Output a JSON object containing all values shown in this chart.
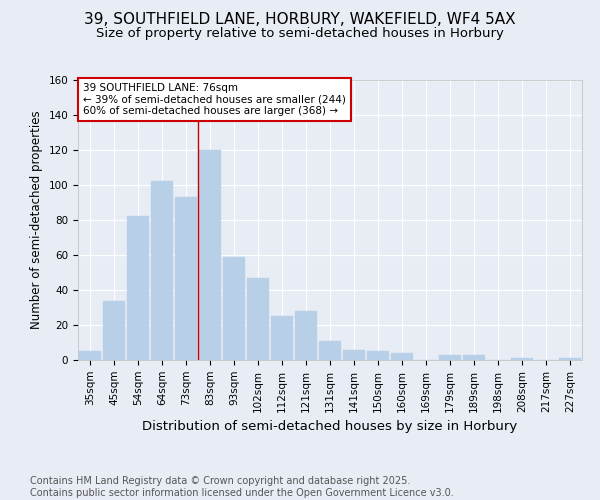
{
  "title": "39, SOUTHFIELD LANE, HORBURY, WAKEFIELD, WF4 5AX",
  "subtitle": "Size of property relative to semi-detached houses in Horbury",
  "xlabel": "Distribution of semi-detached houses by size in Horbury",
  "ylabel": "Number of semi-detached properties",
  "categories": [
    "35sqm",
    "45sqm",
    "54sqm",
    "64sqm",
    "73sqm",
    "83sqm",
    "93sqm",
    "102sqm",
    "112sqm",
    "121sqm",
    "131sqm",
    "141sqm",
    "150sqm",
    "160sqm",
    "169sqm",
    "179sqm",
    "189sqm",
    "198sqm",
    "208sqm",
    "217sqm",
    "227sqm"
  ],
  "values": [
    5,
    34,
    82,
    102,
    93,
    120,
    59,
    47,
    25,
    28,
    11,
    6,
    5,
    4,
    0,
    3,
    3,
    0,
    1,
    0,
    1
  ],
  "bar_color": "#b8cfe8",
  "bar_edge_color": "#b8cfe8",
  "background_color": "#e8edf5",
  "plot_background": "#e8edf5",
  "grid_color": "#ffffff",
  "vline_x_index": 4,
  "vline_color": "#cc0000",
  "annotation_title": "39 SOUTHFIELD LANE: 76sqm",
  "annotation_line1": "← 39% of semi-detached houses are smaller (244)",
  "annotation_line2": "60% of semi-detached houses are larger (368) →",
  "annotation_box_color": "#ffffff",
  "annotation_box_edge": "#cc0000",
  "footer_line1": "Contains HM Land Registry data © Crown copyright and database right 2025.",
  "footer_line2": "Contains public sector information licensed under the Open Government Licence v3.0.",
  "ylim": [
    0,
    160
  ],
  "yticks": [
    0,
    20,
    40,
    60,
    80,
    100,
    120,
    140,
    160
  ],
  "title_fontsize": 11,
  "subtitle_fontsize": 9.5,
  "xlabel_fontsize": 9.5,
  "ylabel_fontsize": 8.5,
  "tick_fontsize": 7.5,
  "footer_fontsize": 7,
  "ann_fontsize": 7.5
}
